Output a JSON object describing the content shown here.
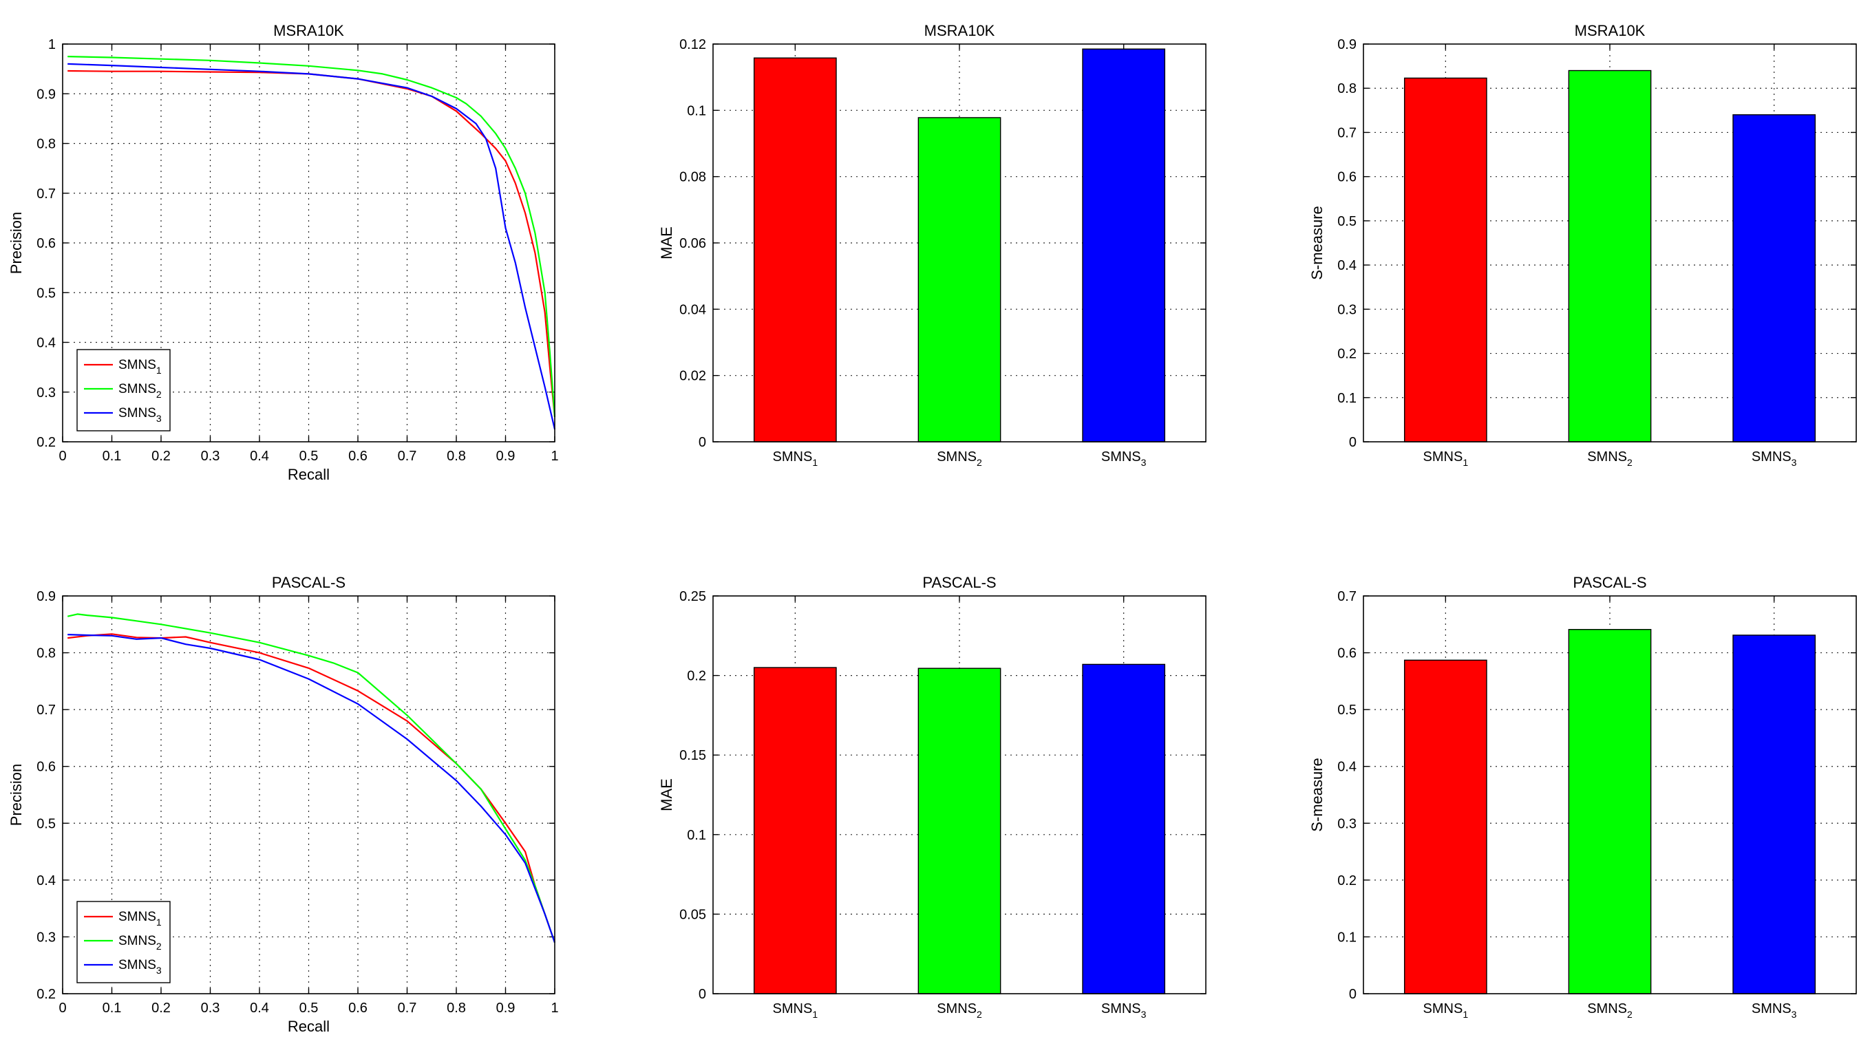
{
  "chart_data": [
    {
      "id": "msra-pr",
      "type": "line",
      "title": "MSRA10K",
      "xlabel": "Recall",
      "ylabel": "Precision",
      "xlim": [
        0,
        1
      ],
      "ylim": [
        0.2,
        1
      ],
      "xticks": [
        0,
        0.1,
        0.2,
        0.3,
        0.4,
        0.5,
        0.6,
        0.7,
        0.8,
        0.9,
        1
      ],
      "yticks": [
        0.2,
        0.3,
        0.4,
        0.5,
        0.6,
        0.7,
        0.8,
        0.9,
        1
      ],
      "grid": true,
      "legend_position": "bottom-left",
      "series": [
        {
          "name": "SMNS",
          "subscript": "1",
          "color": "#ff0000",
          "points": [
            [
              0.01,
              0.946
            ],
            [
              0.1,
              0.945
            ],
            [
              0.2,
              0.945
            ],
            [
              0.3,
              0.944
            ],
            [
              0.4,
              0.943
            ],
            [
              0.5,
              0.94
            ],
            [
              0.6,
              0.93
            ],
            [
              0.7,
              0.91
            ],
            [
              0.75,
              0.895
            ],
            [
              0.8,
              0.865
            ],
            [
              0.85,
              0.82
            ],
            [
              0.88,
              0.79
            ],
            [
              0.9,
              0.765
            ],
            [
              0.92,
              0.72
            ],
            [
              0.94,
              0.66
            ],
            [
              0.96,
              0.58
            ],
            [
              0.98,
              0.46
            ],
            [
              0.99,
              0.35
            ],
            [
              1.0,
              0.25
            ]
          ]
        },
        {
          "name": "SMNS",
          "subscript": "2",
          "color": "#00ff00",
          "points": [
            [
              0.01,
              0.975
            ],
            [
              0.1,
              0.973
            ],
            [
              0.2,
              0.97
            ],
            [
              0.3,
              0.967
            ],
            [
              0.4,
              0.962
            ],
            [
              0.5,
              0.956
            ],
            [
              0.6,
              0.947
            ],
            [
              0.65,
              0.94
            ],
            [
              0.7,
              0.928
            ],
            [
              0.75,
              0.912
            ],
            [
              0.8,
              0.892
            ],
            [
              0.82,
              0.88
            ],
            [
              0.85,
              0.855
            ],
            [
              0.88,
              0.82
            ],
            [
              0.9,
              0.79
            ],
            [
              0.92,
              0.75
            ],
            [
              0.94,
              0.7
            ],
            [
              0.96,
              0.62
            ],
            [
              0.98,
              0.5
            ],
            [
              0.99,
              0.38
            ],
            [
              1.0,
              0.25
            ]
          ]
        },
        {
          "name": "SMNS",
          "subscript": "3",
          "color": "#0000ff",
          "points": [
            [
              0.01,
              0.96
            ],
            [
              0.1,
              0.957
            ],
            [
              0.2,
              0.953
            ],
            [
              0.3,
              0.949
            ],
            [
              0.4,
              0.945
            ],
            [
              0.5,
              0.94
            ],
            [
              0.6,
              0.93
            ],
            [
              0.7,
              0.912
            ],
            [
              0.75,
              0.895
            ],
            [
              0.8,
              0.87
            ],
            [
              0.84,
              0.84
            ],
            [
              0.86,
              0.81
            ],
            [
              0.88,
              0.75
            ],
            [
              0.9,
              0.63
            ],
            [
              0.92,
              0.56
            ],
            [
              0.94,
              0.47
            ],
            [
              0.96,
              0.39
            ],
            [
              0.98,
              0.31
            ],
            [
              1.0,
              0.225
            ]
          ]
        }
      ]
    },
    {
      "id": "msra-mae",
      "type": "bar",
      "title": "MSRA10K",
      "xlabel": "",
      "ylabel": "MAE",
      "ylim": [
        0,
        0.12
      ],
      "yticks": [
        0,
        0.02,
        0.04,
        0.06,
        0.08,
        0.1,
        0.12
      ],
      "grid": true,
      "categories": [
        {
          "name": "SMNS",
          "subscript": "1"
        },
        {
          "name": "SMNS",
          "subscript": "2"
        },
        {
          "name": "SMNS",
          "subscript": "3"
        }
      ],
      "values": [
        0.1158,
        0.0978,
        0.1185
      ],
      "colors": [
        "#ff0000",
        "#00ff00",
        "#0000ff"
      ]
    },
    {
      "id": "msra-smeasure",
      "type": "bar",
      "title": "MSRA10K",
      "xlabel": "",
      "ylabel": "S-measure",
      "ylim": [
        0,
        0.9
      ],
      "yticks": [
        0,
        0.1,
        0.2,
        0.3,
        0.4,
        0.5,
        0.6,
        0.7,
        0.8,
        0.9
      ],
      "grid": true,
      "categories": [
        {
          "name": "SMNS",
          "subscript": "1"
        },
        {
          "name": "SMNS",
          "subscript": "2"
        },
        {
          "name": "SMNS",
          "subscript": "3"
        }
      ],
      "values": [
        0.823,
        0.84,
        0.74
      ],
      "colors": [
        "#ff0000",
        "#00ff00",
        "#0000ff"
      ]
    },
    {
      "id": "pascal-pr",
      "type": "line",
      "title": "PASCAL-S",
      "xlabel": "Recall",
      "ylabel": "Precision",
      "xlim": [
        0,
        1
      ],
      "ylim": [
        0.2,
        0.9
      ],
      "xticks": [
        0,
        0.1,
        0.2,
        0.3,
        0.4,
        0.5,
        0.6,
        0.7,
        0.8,
        0.9,
        1
      ],
      "yticks": [
        0.2,
        0.3,
        0.4,
        0.5,
        0.6,
        0.7,
        0.8,
        0.9
      ],
      "grid": true,
      "legend_position": "bottom-left",
      "series": [
        {
          "name": "SMNS",
          "subscript": "1",
          "color": "#ff0000",
          "points": [
            [
              0.01,
              0.826
            ],
            [
              0.05,
              0.83
            ],
            [
              0.1,
              0.833
            ],
            [
              0.15,
              0.827
            ],
            [
              0.2,
              0.826
            ],
            [
              0.25,
              0.828
            ],
            [
              0.3,
              0.818
            ],
            [
              0.4,
              0.8
            ],
            [
              0.5,
              0.773
            ],
            [
              0.6,
              0.733
            ],
            [
              0.7,
              0.68
            ],
            [
              0.8,
              0.605
            ],
            [
              0.85,
              0.56
            ],
            [
              0.9,
              0.5
            ],
            [
              0.94,
              0.45
            ],
            [
              0.96,
              0.39
            ],
            [
              0.98,
              0.34
            ],
            [
              1.0,
              0.29
            ]
          ]
        },
        {
          "name": "SMNS",
          "subscript": "2",
          "color": "#00ff00",
          "points": [
            [
              0.01,
              0.864
            ],
            [
              0.03,
              0.868
            ],
            [
              0.05,
              0.866
            ],
            [
              0.1,
              0.862
            ],
            [
              0.15,
              0.856
            ],
            [
              0.2,
              0.85
            ],
            [
              0.3,
              0.835
            ],
            [
              0.4,
              0.818
            ],
            [
              0.5,
              0.795
            ],
            [
              0.55,
              0.782
            ],
            [
              0.6,
              0.765
            ],
            [
              0.7,
              0.69
            ],
            [
              0.8,
              0.605
            ],
            [
              0.85,
              0.56
            ],
            [
              0.9,
              0.49
            ],
            [
              0.94,
              0.435
            ],
            [
              0.96,
              0.39
            ],
            [
              0.98,
              0.34
            ],
            [
              1.0,
              0.29
            ]
          ]
        },
        {
          "name": "SMNS",
          "subscript": "3",
          "color": "#0000ff",
          "points": [
            [
              0.01,
              0.832
            ],
            [
              0.05,
              0.831
            ],
            [
              0.1,
              0.83
            ],
            [
              0.15,
              0.824
            ],
            [
              0.2,
              0.826
            ],
            [
              0.25,
              0.815
            ],
            [
              0.3,
              0.808
            ],
            [
              0.4,
              0.788
            ],
            [
              0.5,
              0.754
            ],
            [
              0.6,
              0.71
            ],
            [
              0.7,
              0.648
            ],
            [
              0.8,
              0.575
            ],
            [
              0.85,
              0.53
            ],
            [
              0.9,
              0.48
            ],
            [
              0.94,
              0.43
            ],
            [
              0.96,
              0.385
            ],
            [
              0.98,
              0.34
            ],
            [
              1.0,
              0.29
            ]
          ]
        }
      ]
    },
    {
      "id": "pascal-mae",
      "type": "bar",
      "title": "PASCAL-S",
      "xlabel": "",
      "ylabel": "MAE",
      "ylim": [
        0,
        0.25
      ],
      "yticks": [
        0,
        0.05,
        0.1,
        0.15,
        0.2,
        0.25
      ],
      "grid": true,
      "categories": [
        {
          "name": "SMNS",
          "subscript": "1"
        },
        {
          "name": "SMNS",
          "subscript": "2"
        },
        {
          "name": "SMNS",
          "subscript": "3"
        }
      ],
      "values": [
        0.205,
        0.2045,
        0.207
      ],
      "colors": [
        "#ff0000",
        "#00ff00",
        "#0000ff"
      ]
    },
    {
      "id": "pascal-smeasure",
      "type": "bar",
      "title": "PASCAL-S",
      "xlabel": "",
      "ylabel": "S-measure",
      "ylim": [
        0,
        0.7
      ],
      "yticks": [
        0,
        0.1,
        0.2,
        0.3,
        0.4,
        0.5,
        0.6,
        0.7
      ],
      "grid": true,
      "categories": [
        {
          "name": "SMNS",
          "subscript": "1"
        },
        {
          "name": "SMNS",
          "subscript": "2"
        },
        {
          "name": "SMNS",
          "subscript": "3"
        }
      ],
      "values": [
        0.587,
        0.641,
        0.631
      ],
      "colors": [
        "#ff0000",
        "#00ff00",
        "#0000ff"
      ]
    }
  ]
}
